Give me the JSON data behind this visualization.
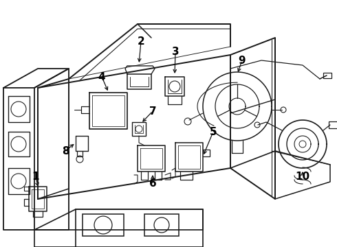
{
  "bg_color": "#ffffff",
  "line_color": "#1a1a1a",
  "lw": 1.1,
  "fig_w": 4.9,
  "fig_h": 3.6,
  "font_size": 10,
  "label_color": "#000000"
}
